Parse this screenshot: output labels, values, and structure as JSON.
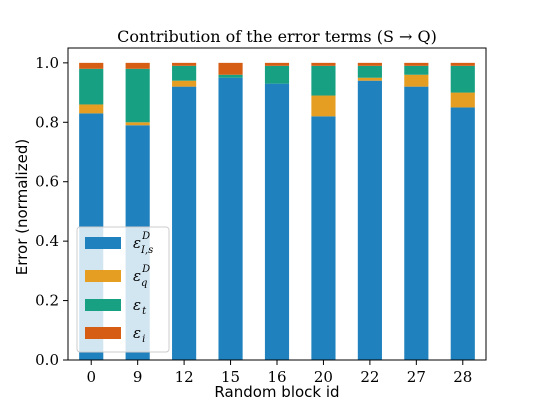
{
  "chart_data": {
    "type": "bar",
    "stacked": true,
    "title": "Contribution of the error terms (S → Q)",
    "xlabel": "Random block id",
    "ylabel": "Error (normalized)",
    "categories": [
      "0",
      "9",
      "12",
      "15",
      "16",
      "20",
      "22",
      "27",
      "28"
    ],
    "ylim": [
      0,
      1.05
    ],
    "yticks": [
      "0.0",
      "0.2",
      "0.4",
      "0.6",
      "0.8",
      "1.0"
    ],
    "ytick_values": [
      0.0,
      0.2,
      0.4,
      0.6,
      0.8,
      1.0
    ],
    "grid": false,
    "legend_position": "lower-left",
    "series": [
      {
        "name": "ε^D_{I,s}",
        "legend_main": "ε",
        "legend_sup": "D",
        "legend_sub": "I,s",
        "color": "#1f81bd",
        "values": [
          0.83,
          0.79,
          0.92,
          0.95,
          0.93,
          0.82,
          0.94,
          0.92,
          0.85
        ]
      },
      {
        "name": "ε^D_q",
        "legend_main": "ε",
        "legend_sup": "D",
        "legend_sub": "q",
        "color": "#e69e22",
        "values": [
          0.03,
          0.01,
          0.02,
          0.0,
          0.0,
          0.07,
          0.01,
          0.04,
          0.05
        ]
      },
      {
        "name": "ε_t",
        "legend_main": "ε",
        "legend_sup": "",
        "legend_sub": "t",
        "color": "#17a082",
        "values": [
          0.12,
          0.18,
          0.05,
          0.01,
          0.06,
          0.1,
          0.04,
          0.03,
          0.09
        ]
      },
      {
        "name": "ε_i",
        "legend_main": "ε",
        "legend_sup": "",
        "legend_sub": "i",
        "color": "#d55e14",
        "values": [
          0.02,
          0.02,
          0.01,
          0.04,
          0.01,
          0.01,
          0.01,
          0.01,
          0.01
        ]
      }
    ]
  }
}
